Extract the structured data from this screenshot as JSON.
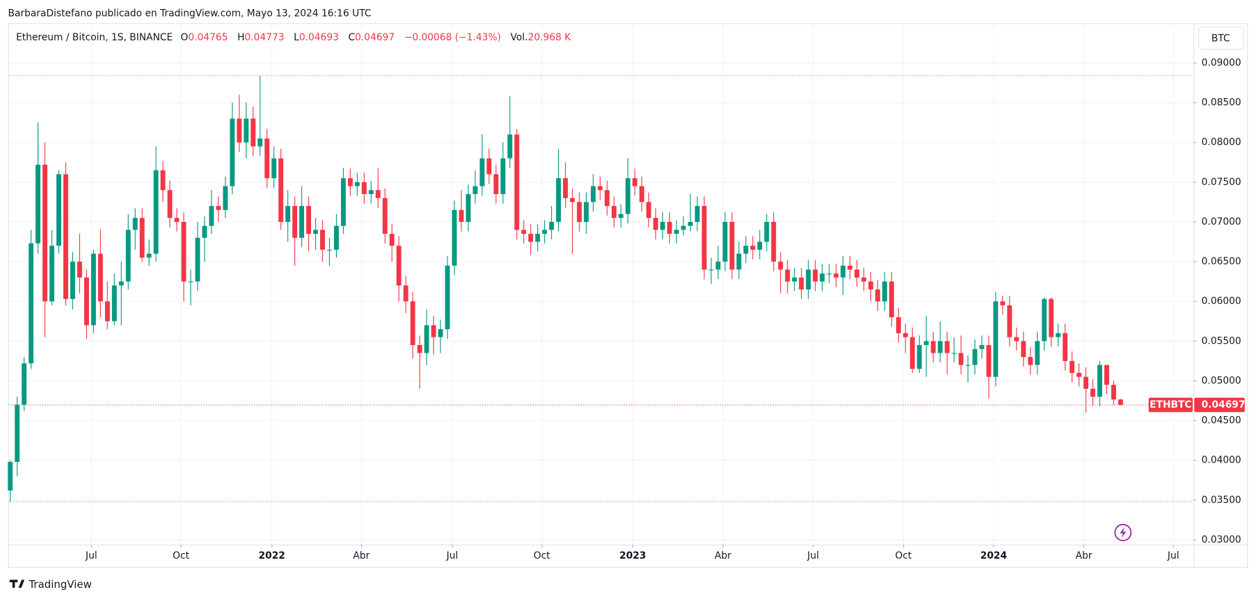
{
  "header": {
    "attribution": "BarbaraDistefano publicado en TradingView.com, Mayo 13, 2024 16:16 UTC",
    "logo": "TradingView",
    "currency_button": "BTC"
  },
  "chart_data": {
    "type": "candlestick",
    "title": "Ethereum / Bitcoin, 1S, BINANCE",
    "ohlc_labels": [
      "O",
      "H",
      "L",
      "C"
    ],
    "change": "−0.00068 (−1.43%)",
    "volume_label": "Vol.",
    "volume": "20.968 K",
    "symbol": "ETHBTC",
    "open": [
      0.0362,
      0.0398,
      0.047,
      0.0522,
      0.0673,
      0.0772,
      0.06,
      0.067,
      0.076,
      0.0603,
      0.065,
      0.063,
      0.057,
      0.066,
      0.06,
      0.0575,
      0.062,
      0.0625,
      0.069,
      0.0705,
      0.0655,
      0.066,
      0.0765,
      0.074,
      0.0705,
      0.07,
      0.0625,
      0.0625,
      0.068,
      0.0695,
      0.072,
      0.0715,
      0.0745,
      0.083,
      0.08,
      0.083,
      0.0795,
      0.0805,
      0.0755,
      0.078,
      0.07,
      0.072,
      0.068,
      0.072,
      0.0685,
      0.069,
      0.0665,
      0.0665,
      0.0695,
      0.0755,
      0.0745,
      0.075,
      0.0735,
      0.074,
      0.073,
      0.0685,
      0.067,
      0.062,
      0.06,
      0.0545,
      0.0535,
      0.057,
      0.0555,
      0.0565,
      0.0645,
      0.0715,
      0.07,
      0.0735,
      0.0745,
      0.078,
      0.076,
      0.0735,
      0.078,
      0.081,
      0.069,
      0.0685,
      0.0675,
      0.0685,
      0.069,
      0.07,
      0.0755,
      0.073,
      0.0725,
      0.07,
      0.0725,
      0.0745,
      0.074,
      0.072,
      0.0705,
      0.071,
      0.0755,
      0.0745,
      0.0725,
      0.0705,
      0.069,
      0.07,
      0.0685,
      0.069,
      0.0695,
      0.07,
      0.072,
      0.064,
      0.064,
      0.065,
      0.07,
      0.064,
      0.066,
      0.067,
      0.0665,
      0.0675,
      0.07,
      0.065,
      0.064,
      0.0625,
      0.063,
      0.0615,
      0.064,
      0.0625,
      0.0635,
      0.0635,
      0.063,
      0.0645,
      0.064,
      0.063,
      0.0625,
      0.0615,
      0.06,
      0.0625,
      0.058,
      0.056,
      0.0555,
      0.0515,
      0.0545,
      0.055,
      0.0535,
      0.055,
      0.0535,
      0.0535,
      0.052,
      0.052,
      0.054,
      0.0545,
      0.0505,
      0.06,
      0.0595,
      0.0555,
      0.055,
      0.053,
      0.052,
      0.055,
      0.0603,
      0.0555,
      0.056,
      0.0525,
      0.051,
      0.0505,
      0.049,
      0.048,
      0.052,
      0.0495,
      0.04765
    ],
    "high": [
      0.04,
      0.048,
      0.053,
      0.069,
      0.0825,
      0.08,
      0.069,
      0.0765,
      0.0775,
      0.0662,
      0.0685,
      0.064,
      0.0665,
      0.069,
      0.0625,
      0.0635,
      0.065,
      0.071,
      0.0717,
      0.0717,
      0.0678,
      0.0795,
      0.0777,
      0.0752,
      0.0717,
      0.0712,
      0.064,
      0.07,
      0.0707,
      0.074,
      0.0732,
      0.0757,
      0.085,
      0.086,
      0.085,
      0.0845,
      0.0884,
      0.0817,
      0.0795,
      0.0792,
      0.074,
      0.0732,
      0.0745,
      0.0732,
      0.0705,
      0.0702,
      0.068,
      0.071,
      0.0768,
      0.0767,
      0.0762,
      0.0762,
      0.0752,
      0.0768,
      0.0742,
      0.0697,
      0.0682,
      0.0632,
      0.0612,
      0.0557,
      0.059,
      0.0582,
      0.0577,
      0.0657,
      0.0727,
      0.074,
      0.0747,
      0.0765,
      0.081,
      0.0792,
      0.0772,
      0.08,
      0.0858,
      0.0817,
      0.0702,
      0.0697,
      0.0697,
      0.0702,
      0.072,
      0.0792,
      0.0775,
      0.0742,
      0.0737,
      0.0737,
      0.076,
      0.0757,
      0.0752,
      0.0732,
      0.0722,
      0.078,
      0.0767,
      0.0757,
      0.0737,
      0.0717,
      0.0712,
      0.0712,
      0.0702,
      0.0707,
      0.0735,
      0.0732,
      0.0732,
      0.0655,
      0.067,
      0.0712,
      0.0712,
      0.0675,
      0.0682,
      0.0682,
      0.069,
      0.071,
      0.0712,
      0.0662,
      0.0652,
      0.0642,
      0.0642,
      0.0652,
      0.0652,
      0.0647,
      0.0647,
      0.0647,
      0.0657,
      0.0657,
      0.0652,
      0.0642,
      0.0637,
      0.0627,
      0.0637,
      0.0637,
      0.0592,
      0.0572,
      0.0567,
      0.0557,
      0.0582,
      0.0562,
      0.0575,
      0.0562,
      0.0555,
      0.0557,
      0.0532,
      0.0552,
      0.0557,
      0.0557,
      0.0612,
      0.0607,
      0.0607,
      0.0567,
      0.0562,
      0.0542,
      0.0562,
      0.0605,
      0.0605,
      0.0572,
      0.0572,
      0.0537,
      0.0522,
      0.0517,
      0.0502,
      0.0525,
      0.052,
      0.05,
      0.04773
    ],
    "low": [
      0.0348,
      0.038,
      0.0462,
      0.0515,
      0.066,
      0.0555,
      0.0595,
      0.066,
      0.0595,
      0.059,
      0.061,
      0.0553,
      0.056,
      0.058,
      0.0565,
      0.057,
      0.057,
      0.0615,
      0.0665,
      0.065,
      0.0645,
      0.065,
      0.0725,
      0.0693,
      0.0688,
      0.06,
      0.0595,
      0.0613,
      0.065,
      0.0685,
      0.07,
      0.0705,
      0.0735,
      0.0788,
      0.078,
      0.0783,
      0.0783,
      0.0743,
      0.0743,
      0.069,
      0.0675,
      0.0645,
      0.0668,
      0.0663,
      0.0665,
      0.065,
      0.0645,
      0.0655,
      0.0685,
      0.0733,
      0.0733,
      0.0723,
      0.0723,
      0.0718,
      0.0673,
      0.065,
      0.06,
      0.0585,
      0.0528,
      0.049,
      0.052,
      0.0533,
      0.0535,
      0.0553,
      0.0633,
      0.0688,
      0.0688,
      0.0723,
      0.0733,
      0.0748,
      0.0723,
      0.0723,
      0.0768,
      0.0678,
      0.0673,
      0.0658,
      0.0663,
      0.0673,
      0.0678,
      0.0688,
      0.0718,
      0.066,
      0.0688,
      0.0685,
      0.0713,
      0.0728,
      0.0708,
      0.0693,
      0.0693,
      0.0698,
      0.0733,
      0.0713,
      0.0693,
      0.0678,
      0.0678,
      0.0673,
      0.0673,
      0.0683,
      0.0688,
      0.0688,
      0.0628,
      0.0622,
      0.0628,
      0.0638,
      0.0628,
      0.0628,
      0.0648,
      0.0653,
      0.0653,
      0.0663,
      0.0638,
      0.061,
      0.061,
      0.0613,
      0.0603,
      0.0603,
      0.0613,
      0.0613,
      0.0623,
      0.0618,
      0.0608,
      0.0628,
      0.0618,
      0.0613,
      0.06,
      0.0588,
      0.0588,
      0.0568,
      0.0548,
      0.0535,
      0.051,
      0.051,
      0.0505,
      0.0523,
      0.0523,
      0.0508,
      0.0523,
      0.0508,
      0.0498,
      0.0508,
      0.0528,
      0.0478,
      0.0493,
      0.0583,
      0.0543,
      0.0538,
      0.0518,
      0.0508,
      0.0508,
      0.0538,
      0.0543,
      0.0543,
      0.0513,
      0.0498,
      0.0493,
      0.046,
      0.0468,
      0.0468,
      0.0483,
      0.047,
      0.04693
    ],
    "close": [
      0.0398,
      0.047,
      0.0522,
      0.0673,
      0.0772,
      0.06,
      0.067,
      0.076,
      0.0603,
      0.065,
      0.063,
      0.057,
      0.066,
      0.06,
      0.0575,
      0.062,
      0.0625,
      0.069,
      0.0705,
      0.0655,
      0.066,
      0.0765,
      0.074,
      0.0705,
      0.07,
      0.0625,
      0.0625,
      0.068,
      0.0695,
      0.072,
      0.0715,
      0.0745,
      0.083,
      0.08,
      0.083,
      0.0795,
      0.0805,
      0.0755,
      0.078,
      0.07,
      0.072,
      0.068,
      0.072,
      0.0685,
      0.069,
      0.0665,
      0.0665,
      0.0695,
      0.0755,
      0.0745,
      0.075,
      0.0735,
      0.074,
      0.073,
      0.0685,
      0.067,
      0.062,
      0.06,
      0.0545,
      0.0535,
      0.057,
      0.0555,
      0.0565,
      0.0645,
      0.0715,
      0.07,
      0.0735,
      0.0745,
      0.078,
      0.076,
      0.0735,
      0.078,
      0.081,
      0.069,
      0.0685,
      0.0675,
      0.0685,
      0.069,
      0.07,
      0.0755,
      0.073,
      0.0725,
      0.07,
      0.0725,
      0.0745,
      0.074,
      0.072,
      0.0705,
      0.071,
      0.0755,
      0.0745,
      0.0725,
      0.0705,
      0.069,
      0.07,
      0.0685,
      0.069,
      0.0695,
      0.07,
      0.072,
      0.064,
      0.064,
      0.065,
      0.07,
      0.064,
      0.066,
      0.067,
      0.0665,
      0.0675,
      0.07,
      0.065,
      0.064,
      0.0625,
      0.063,
      0.0615,
      0.064,
      0.0625,
      0.0635,
      0.0635,
      0.063,
      0.0645,
      0.064,
      0.063,
      0.0625,
      0.0615,
      0.06,
      0.0625,
      0.058,
      0.056,
      0.0555,
      0.0515,
      0.0545,
      0.055,
      0.0535,
      0.055,
      0.0535,
      0.0535,
      0.052,
      0.052,
      0.054,
      0.0545,
      0.0505,
      0.06,
      0.0595,
      0.0555,
      0.055,
      0.053,
      0.052,
      0.055,
      0.0603,
      0.0555,
      0.056,
      0.0525,
      0.051,
      0.0505,
      0.049,
      0.048,
      0.052,
      0.0495,
      0.04765,
      0.04697
    ],
    "up_color": "#089981",
    "down_color": "#f23645",
    "xlim": [
      -0.2,
      170.5
    ],
    "xticks": [
      {
        "value": 11.7,
        "label": "Jul"
      },
      {
        "value": 24.6,
        "label": "Oct"
      },
      {
        "value": 37.7,
        "label": "2022"
      },
      {
        "value": 50.6,
        "label": "Abr"
      },
      {
        "value": 63.7,
        "label": "Jul"
      },
      {
        "value": 76.6,
        "label": "Oct"
      },
      {
        "value": 89.7,
        "label": "2023"
      },
      {
        "value": 102.7,
        "label": "Abr"
      },
      {
        "value": 115.7,
        "label": "Jul"
      },
      {
        "value": 128.7,
        "label": "Oct"
      },
      {
        "value": 141.7,
        "label": "2024"
      },
      {
        "value": 154.7,
        "label": "Abr"
      },
      {
        "value": 167.6,
        "label": "Jul"
      }
    ],
    "ylim": [
      0.0294,
      0.0949
    ],
    "yticks": [
      {
        "value": 0.03,
        "label": "0.03000"
      },
      {
        "value": 0.035,
        "label": "0.03500"
      },
      {
        "value": 0.04,
        "label": "0.04000"
      },
      {
        "value": 0.045,
        "label": "0.04500"
      },
      {
        "value": 0.05,
        "label": "0.05000"
      },
      {
        "value": 0.055,
        "label": "0.05500"
      },
      {
        "value": 0.06,
        "label": "0.06000"
      },
      {
        "value": 0.065,
        "label": "0.06500"
      },
      {
        "value": 0.07,
        "label": "0.07000"
      },
      {
        "value": 0.075,
        "label": "0.07500"
      },
      {
        "value": 0.08,
        "label": "0.08000"
      },
      {
        "value": 0.085,
        "label": "0.08500"
      },
      {
        "value": 0.09,
        "label": "0.09000"
      }
    ],
    "grid": true,
    "range_lines": [
      0.0884,
      0.0348
    ]
  }
}
